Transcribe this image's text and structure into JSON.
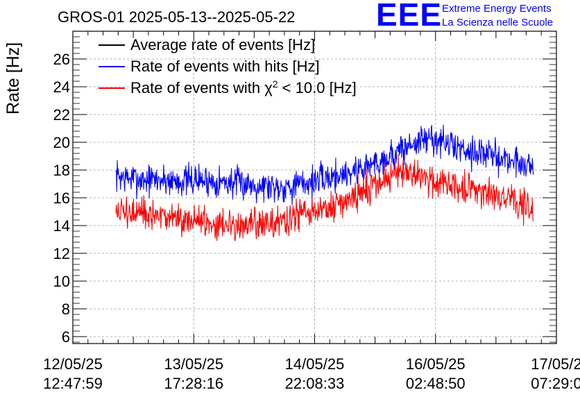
{
  "header": {
    "title": "GROS-01 2025-05-13--2025-05-22",
    "logo_mark": "EEE",
    "logo_line1": "Extreme Energy Events",
    "logo_line2": "La Scienza nelle Scuole"
  },
  "chart_data": {
    "type": "line",
    "title": "GROS-01 2025-05-13--2025-05-22",
    "ylabel": "Rate [Hz]",
    "xlabel": "",
    "ylim": [
      5.5,
      28
    ],
    "yticks": [
      6,
      8,
      10,
      12,
      14,
      16,
      18,
      20,
      22,
      24,
      26
    ],
    "xticks": [
      {
        "date": "12/05/25",
        "time": "12:47:59"
      },
      {
        "date": "13/05/25",
        "time": "17:28:16"
      },
      {
        "date": "14/05/25",
        "time": "22:08:33"
      },
      {
        "date": "16/05/25",
        "time": "02:48:50"
      },
      {
        "date": "17/05/2",
        "time": "07:29:0"
      }
    ],
    "grid": true,
    "legend_position": "top-left",
    "legend_entries": [
      {
        "prefix": "Average rate of events [Hz]",
        "sup": "",
        "suffix": "",
        "color": "#000000"
      },
      {
        "prefix": "Rate of events with hits [Hz]",
        "sup": "",
        "suffix": "",
        "color": "#0000ff"
      },
      {
        "prefix": "Rate of events with χ",
        "sup": "2",
        "suffix": " < 10.0 [Hz]",
        "color": "#ff0000"
      }
    ],
    "x_start": "2025-05-12T12:47:59",
    "x_end": "2025-05-17T07:29:07",
    "series": [
      {
        "name": "Rate of events with hits [Hz]",
        "color": "#0000ff",
        "x": [
          "2025-05-12T23:00",
          "2025-05-13T02:00",
          "2025-05-13T06:00",
          "2025-05-13T10:00",
          "2025-05-13T14:00",
          "2025-05-13T18:00",
          "2025-05-13T22:00",
          "2025-05-14T02:00",
          "2025-05-14T06:00",
          "2025-05-14T10:00",
          "2025-05-14T14:00",
          "2025-05-14T18:00",
          "2025-05-14T22:00",
          "2025-05-15T02:00",
          "2025-05-15T06:00",
          "2025-05-15T10:00",
          "2025-05-15T14:00",
          "2025-05-15T18:00",
          "2025-05-15T22:00",
          "2025-05-16T02:00",
          "2025-05-16T06:00",
          "2025-05-16T10:00",
          "2025-05-16T14:00",
          "2025-05-16T18:00",
          "2025-05-16T22:00",
          "2025-05-17T02:00"
        ],
        "values": [
          17.6,
          17.4,
          17.3,
          17.3,
          17.2,
          17.3,
          17.2,
          17.1,
          17.0,
          16.9,
          16.8,
          16.9,
          17.2,
          17.5,
          17.8,
          18.2,
          18.7,
          19.3,
          20.0,
          20.3,
          19.8,
          19.5,
          19.2,
          18.9,
          18.6,
          18.3
        ],
        "noise": 0.7
      },
      {
        "name": "Rate of events with χ2 < 10.0 [Hz]",
        "color": "#ff0000",
        "x": [
          "2025-05-12T23:00",
          "2025-05-13T02:00",
          "2025-05-13T06:00",
          "2025-05-13T10:00",
          "2025-05-13T14:00",
          "2025-05-13T18:00",
          "2025-05-13T22:00",
          "2025-05-14T02:00",
          "2025-05-14T06:00",
          "2025-05-14T10:00",
          "2025-05-14T14:00",
          "2025-05-14T18:00",
          "2025-05-14T22:00",
          "2025-05-15T02:00",
          "2025-05-15T06:00",
          "2025-05-15T10:00",
          "2025-05-15T14:00",
          "2025-05-15T18:00",
          "2025-05-15T22:00",
          "2025-05-16T02:00",
          "2025-05-16T06:00",
          "2025-05-16T10:00",
          "2025-05-16T14:00",
          "2025-05-16T18:00",
          "2025-05-16T22:00",
          "2025-05-17T02:00"
        ],
        "values": [
          15.0,
          14.9,
          14.7,
          14.6,
          14.5,
          14.4,
          14.2,
          14.2,
          14.0,
          14.1,
          14.3,
          14.6,
          14.9,
          15.3,
          15.8,
          16.5,
          17.3,
          17.8,
          17.5,
          17.3,
          17.1,
          16.8,
          16.5,
          16.1,
          15.7,
          15.0
        ],
        "noise": 0.7
      }
    ]
  }
}
